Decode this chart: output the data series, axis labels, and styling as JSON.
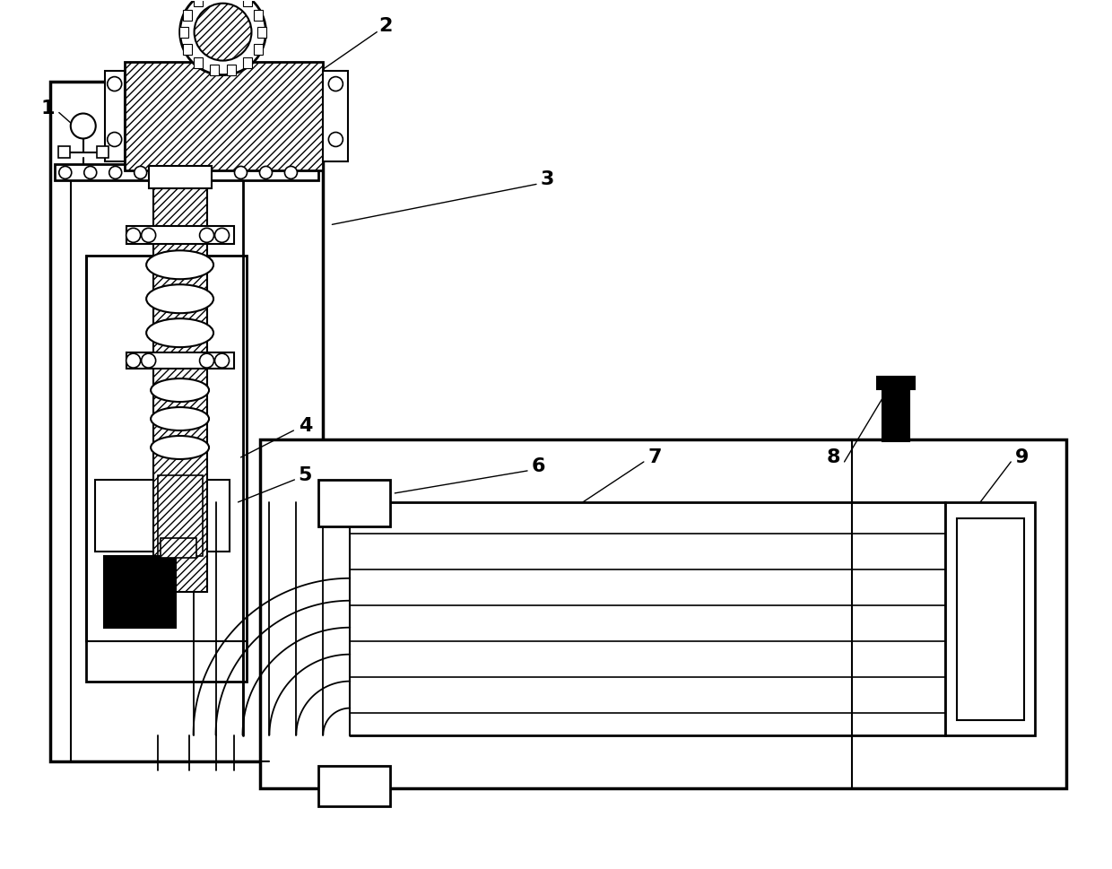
{
  "bg_color": "#ffffff",
  "lc": "#000000",
  "fig_width": 12.4,
  "fig_height": 9.69,
  "dpi": 100
}
